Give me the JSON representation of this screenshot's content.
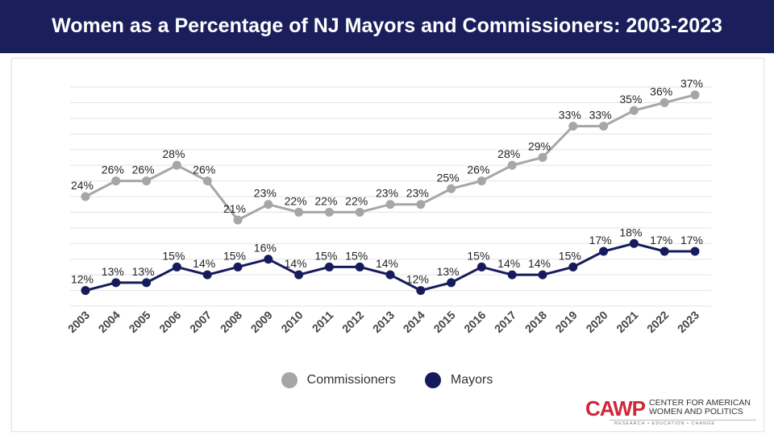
{
  "header": {
    "title": "Women as a Percentage of NJ Mayors and Commissioners: 2003-2023"
  },
  "chart_data": {
    "type": "line",
    "title": "Women as a Percentage of NJ Mayors and Commissioners: 2003-2023",
    "categories": [
      "2003",
      "2004",
      "2005",
      "2006",
      "2007",
      "2008",
      "2009",
      "2010",
      "2011",
      "2012",
      "2013",
      "2014",
      "2015",
      "2016",
      "2017",
      "2018",
      "2019",
      "2020",
      "2021",
      "2022",
      "2023"
    ],
    "series": [
      {
        "name": "Commissioners",
        "color": "#a6a6a6",
        "values": [
          24,
          26,
          26,
          28,
          26,
          21,
          23,
          22,
          22,
          22,
          23,
          23,
          25,
          26,
          28,
          29,
          33,
          33,
          35,
          36,
          37
        ]
      },
      {
        "name": "Mayors",
        "color": "#161b5c",
        "values": [
          12,
          13,
          13,
          15,
          14,
          15,
          16,
          14,
          15,
          15,
          14,
          12,
          13,
          15,
          14,
          14,
          15,
          17,
          18,
          17,
          17
        ]
      }
    ],
    "ylim": [
      10,
      38
    ],
    "grid_step": 2,
    "grid": true,
    "y_axis_labels": false,
    "value_suffix": "%",
    "legend_position": "bottom"
  },
  "logo": {
    "mark": "CAWP",
    "name_line1": "CENTER FOR AMERICAN",
    "name_line2": "WOMEN AND POLITICS",
    "tagline": "RESEARCH • EDUCATION • CHANGE"
  }
}
